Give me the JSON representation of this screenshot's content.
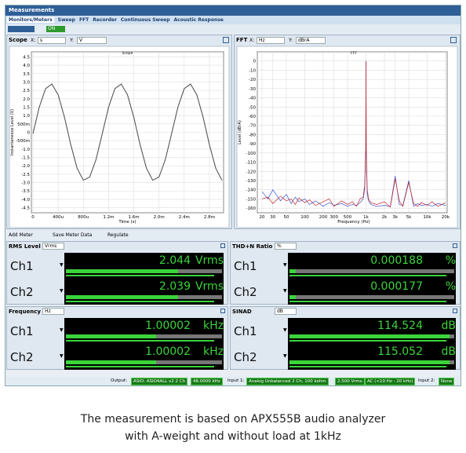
{
  "header": {
    "title": "Measurements",
    "tabs": [
      "Monitors/Meters",
      "Sweep",
      "FFT",
      "Recorder",
      "Continuous Sweep",
      "Acoustic Response"
    ],
    "toggle": "ON"
  },
  "panels": [
    {
      "title": "Scope",
      "x_prefix": "X:",
      "x_unit": "s",
      "y_prefix": "Y:",
      "y_unit": "V"
    },
    {
      "title": "FFT",
      "x_prefix": "X:",
      "x_unit": "Hz",
      "y_prefix": "Y:",
      "y_unit": "dBrA"
    }
  ],
  "chart_data": [
    {
      "type": "line",
      "title": "Scope",
      "x_label": "Time (s)",
      "y_label": "Instantaneous Level (V)",
      "grid": true,
      "x": [
        0,
        0.0001,
        0.0002,
        0.0003,
        0.0004,
        0.0005,
        0.0006,
        0.0007,
        0.0008,
        0.0009,
        0.001,
        0.0011,
        0.0012,
        0.0013,
        0.0014,
        0.0015,
        0.0016,
        0.0017,
        0.0018,
        0.0019,
        0.002,
        0.0021,
        0.0022,
        0.0023,
        0.0024,
        0.0025,
        0.0026,
        0.0027,
        0.0028,
        0.0029,
        0.003
      ],
      "series": [
        {
          "color": "#555555",
          "values": [
            -0.08,
            1.5,
            2.6,
            2.88,
            2.24,
            0.9,
            -0.74,
            -2.14,
            -2.86,
            -2.67,
            -1.64,
            -0.08,
            1.5,
            2.6,
            2.88,
            2.24,
            0.9,
            -0.74,
            -2.14,
            -2.86,
            -2.67,
            -1.64,
            -0.08,
            1.5,
            2.6,
            2.88,
            2.24,
            0.9,
            -0.74,
            -2.14,
            -2.86
          ]
        }
      ],
      "xlim": [
        0,
        0.003
      ],
      "ylim": [
        -4.8,
        4.8
      ],
      "xticks": [
        0,
        {
          "value": 0.0004,
          "label": "400u"
        },
        {
          "value": 0.0008,
          "label": "800u"
        },
        {
          "value": 0.0012,
          "label": "1.2m"
        },
        {
          "value": 0.0016,
          "label": "1.6m"
        },
        {
          "value": 0.002,
          "label": "2.0m"
        },
        {
          "value": 0.0024,
          "label": "2.4m"
        },
        {
          "value": 0.0028,
          "label": "2.8m"
        }
      ],
      "yticks": [
        4.5,
        {
          "value": 4,
          "label": "4.0"
        },
        3.5,
        {
          "value": 3,
          "label": "3.0"
        },
        2.5,
        {
          "value": 2,
          "label": "2.0"
        },
        1.5,
        {
          "value": 1,
          "label": "1.0"
        },
        {
          "value": 0.5,
          "label": "500m"
        },
        0,
        {
          "value": -0.5,
          "label": "-500m"
        },
        {
          "value": -1,
          "label": "-1.0"
        },
        -1.5,
        {
          "value": -2,
          "label": "-2.0"
        },
        -2.5,
        {
          "value": -3,
          "label": "-3.0"
        },
        -3.5,
        {
          "value": -4,
          "label": "-4.0"
        },
        -4.5
      ]
    },
    {
      "type": "line",
      "title": "FFT",
      "x_label": "Frequency (Hz)",
      "y_label": "Level (dBrA)",
      "grid": true,
      "log_x": true,
      "x": [
        20,
        25,
        30,
        40,
        50,
        60,
        70,
        80,
        100,
        120,
        150,
        200,
        250,
        300,
        400,
        500,
        600,
        700,
        800,
        900,
        950,
        990,
        1000,
        1010,
        1050,
        1100,
        1200,
        1500,
        2000,
        2500,
        3000,
        3500,
        4000,
        5000,
        6000,
        7000,
        8000,
        10000,
        12000,
        15000,
        20000
      ],
      "series": [
        {
          "color": "#3a4fd0",
          "values": [
            -142,
            -150,
            -140,
            -152,
            -145,
            -155,
            -148,
            -153,
            -150,
            -156,
            -152,
            -158,
            -154,
            -157,
            -155,
            -158,
            -156,
            -157,
            -154,
            -150,
            -140,
            -100,
            0,
            -100,
            -145,
            -152,
            -156,
            -158,
            -157,
            -158,
            -125,
            -156,
            -157,
            -130,
            -158,
            -155,
            -157,
            -156,
            -158,
            -155,
            -157
          ]
        },
        {
          "color": "#c0262b",
          "values": [
            -150,
            -148,
            -155,
            -147,
            -152,
            -150,
            -156,
            -149,
            -154,
            -151,
            -157,
            -153,
            -150,
            -158,
            -152,
            -156,
            -153,
            -158,
            -150,
            -148,
            -135,
            -95,
            0,
            -96,
            -140,
            -150,
            -154,
            -156,
            -153,
            -159,
            -128,
            -152,
            -158,
            -132,
            -155,
            -158,
            -154,
            -157,
            -153,
            -158,
            -154
          ]
        }
      ],
      "xlim": [
        20,
        20000
      ],
      "ylim": [
        -165,
        10
      ],
      "xticks": [
        20,
        30,
        50,
        100,
        200,
        300,
        500,
        {
          "value": 1000,
          "label": "1k"
        },
        {
          "value": 2000,
          "label": "2k"
        },
        {
          "value": 3000,
          "label": "3k"
        },
        {
          "value": 5000,
          "label": "5k"
        },
        {
          "value": 10000,
          "label": "10k"
        },
        {
          "value": 20000,
          "label": "20k"
        }
      ],
      "yticks": [
        0,
        -10,
        -20,
        -30,
        -40,
        -50,
        -60,
        -70,
        -80,
        -90,
        -100,
        -110,
        -120,
        -130,
        -140,
        -150,
        -160
      ]
    }
  ],
  "meter_toolbar": [
    "Add Meter",
    "Save Meter Data",
    "Regulate"
  ],
  "meters": [
    {
      "title": "RMS Level",
      "unit": "Vrms",
      "channels": [
        {
          "name": "Ch1",
          "value": "2.044",
          "unit": "Vrms"
        },
        {
          "name": "Ch2",
          "value": "2.039",
          "unit": "Vrms"
        }
      ]
    },
    {
      "title": "THD+N Ratio",
      "unit": "%",
      "channels": [
        {
          "name": "Ch1",
          "value": "0.000188",
          "unit": "%"
        },
        {
          "name": "Ch2",
          "value": "0.000177",
          "unit": "%"
        }
      ]
    },
    {
      "title": "Frequency",
      "unit": "Hz",
      "channels": [
        {
          "name": "Ch1",
          "value": "1.00002",
          "unit": "kHz"
        },
        {
          "name": "Ch2",
          "value": "1.00002",
          "unit": "kHz"
        }
      ]
    },
    {
      "title": "SINAD",
      "unit": "dB",
      "channels": [
        {
          "name": "Ch1",
          "value": "114.524",
          "unit": "dB"
        },
        {
          "name": "Ch2",
          "value": "115.052",
          "unit": "dB"
        }
      ]
    }
  ],
  "status": {
    "output_label": "Output:",
    "output": [
      "ASIO: ASIO4ALL v2 2 Ch",
      "48.0000 kHz"
    ],
    "input1_label": "Input 1:",
    "input1": [
      "Analog Unbalanced 2 Ch, 100 kohm",
      "2.500 Vrms",
      "AC (<10 Hz - 20 kHz)"
    ],
    "input2_label": "Input 2:",
    "input2": "None"
  },
  "caption": [
    "The measurement is based on APX555B audio analyzer",
    "with A-weight and without load at 1kHz"
  ]
}
